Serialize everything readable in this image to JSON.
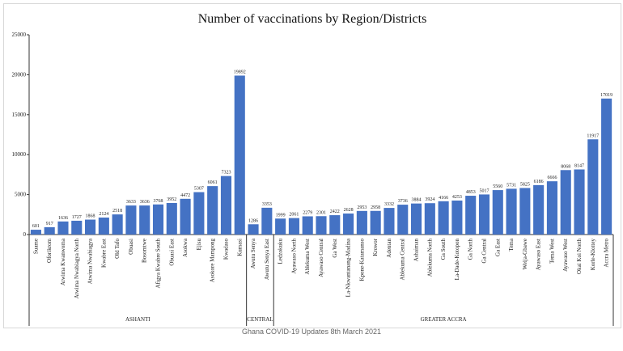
{
  "chart_data": {
    "type": "bar",
    "title": "Number of vaccinations by Region/Districts",
    "ylim": [
      0,
      25000
    ],
    "yticks": [
      0,
      5000,
      10000,
      15000,
      20000,
      25000
    ],
    "grid": false,
    "bar_color": "#4472c4",
    "categories": [
      "Suame",
      "Oforikrom",
      "Atwima Kwanwoma",
      "Atwima Nwabiagya North",
      "Atwima Nwabiagya",
      "Kwabre East",
      "Old Tafo",
      "Obuasi",
      "Bosomtwe",
      "Afigya Kwabre South",
      "Obuasi East",
      "Asokwa",
      "Ejisu",
      "Asokore Mampong",
      "Kwadaso",
      "Kumasi",
      "Awutu Senya",
      "Awutu Senya East",
      "Ledzokuku",
      "Ayawaso North",
      "Ablekuma West",
      "Ayawaso Central",
      "Ga West",
      "La-Nkwantanang-Madina",
      "Kpone-Katamanso",
      "Krowor",
      "Adentan",
      "Ablekuma Central",
      "Ashaiman",
      "Ablekuma North",
      "Ga South",
      "La-Dade-Kotopon",
      "Ga North",
      "Ga Central",
      "Ga East",
      "Tema",
      "Weija-Gbawe",
      "Ayawaso East",
      "Tema West",
      "Ayawaso West",
      "Okai Koi North",
      "Korle-Klottey",
      "Accra Metro"
    ],
    "values": [
      601,
      917,
      1636,
      1727,
      1868,
      2124,
      2518,
      3633,
      3636,
      3768,
      3952,
      4472,
      5307,
      6061,
      7323,
      19892,
      1286,
      3353,
      1999,
      2061,
      2279,
      2301,
      2422,
      2628,
      2953,
      2958,
      3332,
      3736,
      3884,
      3924,
      4166,
      4253,
      4853,
      5017,
      5560,
      5731,
      5825,
      6186,
      6666,
      8068,
      8147,
      11917,
      17019
    ],
    "regions": [
      {
        "name": "ASHANTI",
        "start": 0,
        "end": 15
      },
      {
        "name": "CENTRAL",
        "start": 16,
        "end": 17
      },
      {
        "name": "GREATER ACCRA",
        "start": 18,
        "end": 42
      }
    ]
  },
  "footer": {
    "source_text": "Ghana COVID-19 Updates 8th March 2021"
  }
}
